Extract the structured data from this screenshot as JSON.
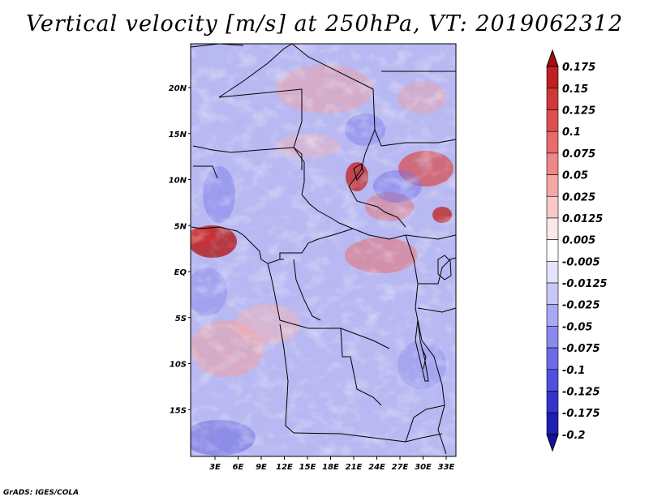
{
  "title": "Vertical velocity [m/s] at 250hPa, VT: 2019062312",
  "map": {
    "lat_labels": [
      "20N",
      "15N",
      "10N",
      "5N",
      "EQ",
      "5S",
      "10S",
      "15S"
    ],
    "lat_values": [
      20,
      15,
      10,
      5,
      0,
      -5,
      -10,
      -15
    ],
    "lon_labels": [
      "3E",
      "6E",
      "9E",
      "12E",
      "15E",
      "18E",
      "21E",
      "24E",
      "27E",
      "30E",
      "33E"
    ],
    "lon_values": [
      3,
      6,
      9,
      12,
      15,
      18,
      21,
      24,
      27,
      30,
      33
    ]
  },
  "colorbar": {
    "labels": [
      "0.175",
      "0.15",
      "0.125",
      "0.1",
      "0.075",
      "0.05",
      "0.025",
      "0.0125",
      "0.005",
      "-0.005",
      "-0.0125",
      "-0.025",
      "-0.05",
      "-0.075",
      "-0.1",
      "-0.125",
      "-0.175",
      "-0.2"
    ],
    "colors": [
      "#a01010",
      "#c02020",
      "#d03838",
      "#de5050",
      "#e86a6a",
      "#f08686",
      "#f6a6a6",
      "#fac8c8",
      "#fde6e6",
      "#ffffff",
      "#e4e4fc",
      "#c8c8f8",
      "#a8a8f4",
      "#8a8aee",
      "#6c6ce6",
      "#5050dc",
      "#3434cc",
      "#1e1eb0",
      "#12129a"
    ]
  },
  "footer": "GrADS: IGES/COLA"
}
